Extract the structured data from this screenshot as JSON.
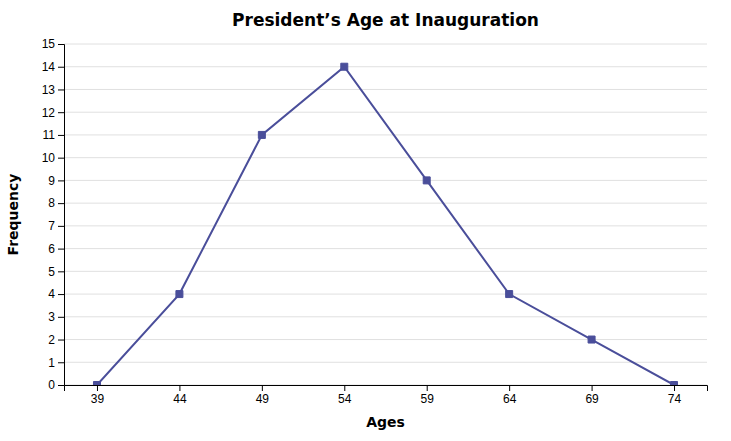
{
  "chart_data": {
    "type": "line",
    "title": "President’s Age at Inauguration",
    "xlabel": "Ages",
    "ylabel": "Frequency",
    "x": [
      39,
      44,
      49,
      54,
      59,
      64,
      69,
      74
    ],
    "values": [
      0,
      4,
      11,
      14,
      9,
      4,
      2,
      0
    ],
    "color": "#4a4e9a",
    "marker": "square",
    "xlim": [
      37,
      76
    ],
    "ylim": [
      0,
      15
    ],
    "xticks": [
      39,
      44,
      49,
      54,
      59,
      64,
      69,
      74
    ],
    "yticks": [
      0,
      1,
      2,
      3,
      4,
      5,
      6,
      7,
      8,
      9,
      10,
      11,
      12,
      13,
      14,
      15
    ],
    "grid": true
  }
}
